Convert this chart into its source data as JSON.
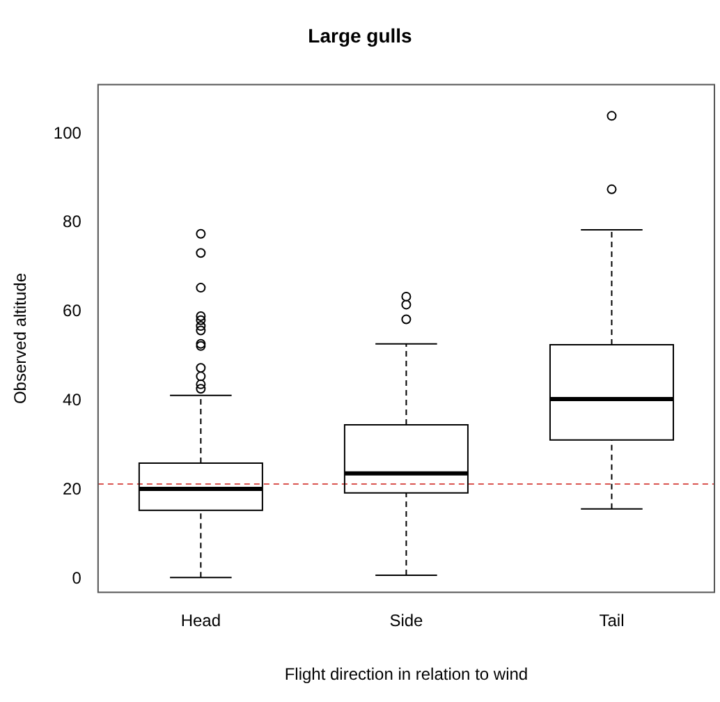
{
  "chart_data": {
    "type": "box",
    "title": "Large gulls",
    "xlabel": "Flight direction in relation to wind",
    "ylabel": "Observed altitude",
    "categories": [
      "Head",
      "Side",
      "Tail"
    ],
    "boxes": [
      {
        "low": 0.3,
        "q1": 15.4,
        "median": 20.2,
        "q3": 26.0,
        "high": 41.2,
        "outliers": [
          77.5,
          73.2,
          65.4,
          59.0,
          58.1,
          56.8,
          55.8,
          52.8,
          52.3,
          47.4,
          45.5,
          43.7,
          42.7
        ]
      },
      {
        "low": 0.8,
        "q1": 19.3,
        "median": 23.7,
        "q3": 34.6,
        "high": 52.8,
        "outliers": [
          63.4,
          61.6,
          58.3
        ]
      },
      {
        "low": 15.7,
        "q1": 31.2,
        "median": 40.4,
        "q3": 52.6,
        "high": 78.4,
        "outliers": [
          87.5,
          104
        ]
      }
    ],
    "color": "#000000",
    "ylim": [
      -3,
      111
    ],
    "yticks": [
      0,
      20,
      40,
      60,
      80,
      100
    ],
    "ref_lines": [
      {
        "axis": "y",
        "value": 21.3,
        "color": "#d9534f",
        "line_style": "dashed"
      }
    ]
  }
}
